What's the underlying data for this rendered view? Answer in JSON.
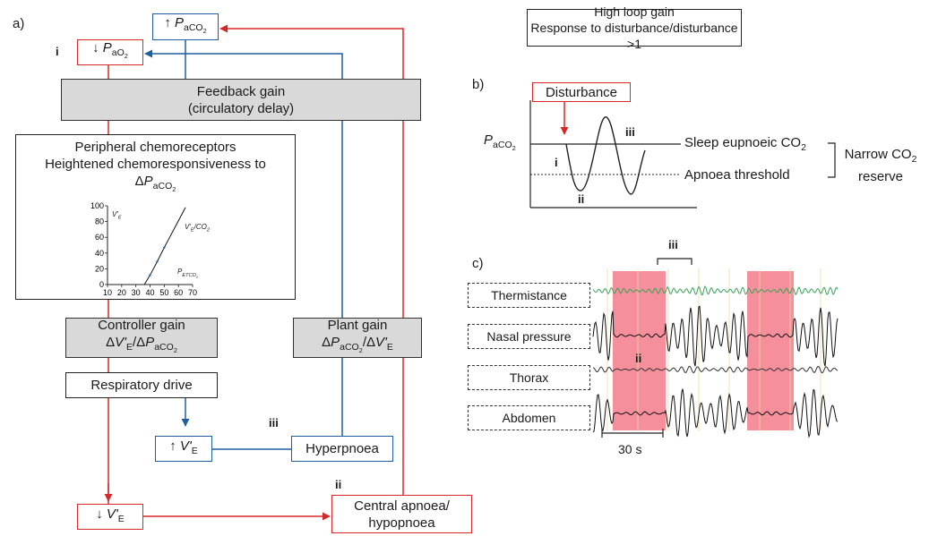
{
  "panels": {
    "a": "a)",
    "b": "b)",
    "c": "c)"
  },
  "colors": {
    "red": "#d62828",
    "blue": "#1f5fa0",
    "grey": "#d9d9d9",
    "green": "#3aa35c",
    "shade": "#f26a7a"
  },
  "arrows": {
    "up": "↑",
    "down": "↓"
  },
  "panel_a": {
    "paco2_label": "P",
    "paco2_sub": "aCO",
    "paco2_sub2": "2",
    "pao2_sub": "aO",
    "pao2_sub2": "2",
    "marker_i": "i",
    "marker_ii": "ii",
    "marker_iii": "iii",
    "feedback_line1": "Feedback gain",
    "feedback_line2": "(circulatory delay)",
    "chemo_line1": "Peripheral chemoreceptors",
    "chemo_line2": "Heightened chemoresponsiveness to",
    "delta": "Δ",
    "controller_line1": "Controller gain",
    "plant_line1": "Plant gain",
    "ve_v": "V'",
    "ve_sub": "E",
    "slash": "/",
    "respiratory_drive": "Respiratory drive",
    "hyperpnoea": "Hyperpnoea",
    "central_apnoea_line1": "Central apnoea/",
    "central_apnoea_line2": "hypopnoea"
  },
  "chart_data": {
    "type": "line",
    "x": [
      36,
      40,
      45,
      50,
      55,
      60,
      65
    ],
    "y": [
      0,
      12,
      29,
      47,
      64,
      81,
      98
    ],
    "xticks": [
      "10",
      "20",
      "30",
      "40",
      "50",
      "60",
      "70"
    ],
    "yticks": [
      "0",
      "20",
      "40",
      "60",
      "80",
      "100"
    ],
    "xlim": [
      10,
      70
    ],
    "ylim": [
      0,
      100
    ],
    "ylabel_v": "V'",
    "ylabel_sub": "E",
    "xlabel_p": "P",
    "xlabel_sub": "ETCO",
    "xlabel_sub2": "2",
    "line_label_v": "V'",
    "line_label_sub": "E",
    "line_label_rest": "/CO",
    "line_label_sub2": "2"
  },
  "panel_b": {
    "title_line1": "High loop gain",
    "title_line2": "Response to disturbance/disturbance >1",
    "disturbance": "Disturbance",
    "sleep_eupnoeic": "Sleep eupnoeic CO",
    "sleep_sub": "2",
    "apnoea_threshold": "Apnoea threshold",
    "narrow_line1": "Narrow CO",
    "narrow_sub": "2",
    "narrow_line2": "reserve",
    "marker_i": "i",
    "marker_ii": "ii",
    "marker_iii": "iii"
  },
  "panel_c": {
    "channels": [
      "Thermistance",
      "Nasal pressure",
      "Thorax",
      "Abdomen"
    ],
    "scale_label": "30 s",
    "marker_ii": "ii",
    "marker_iii": "iii"
  }
}
